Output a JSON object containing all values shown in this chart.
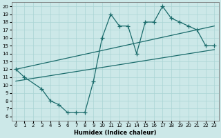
{
  "xlabel": "Humidex (Indice chaleur)",
  "bg_color": "#cce8e8",
  "line_color": "#1a6b6b",
  "xlim": [
    -0.5,
    23.5
  ],
  "ylim": [
    5.5,
    20.5
  ],
  "xticks": [
    0,
    1,
    2,
    3,
    4,
    5,
    6,
    7,
    8,
    9,
    10,
    11,
    12,
    13,
    14,
    15,
    16,
    17,
    18,
    19,
    20,
    21,
    22,
    23
  ],
  "yticks": [
    6,
    7,
    8,
    9,
    10,
    11,
    12,
    13,
    14,
    15,
    16,
    17,
    18,
    19,
    20
  ],
  "upper_curve_x": [
    0,
    1,
    3,
    4,
    5,
    6,
    7,
    8,
    9,
    10,
    11,
    12,
    13,
    14,
    15,
    16,
    17,
    18,
    19,
    20,
    21,
    22,
    23
  ],
  "upper_curve_y": [
    12,
    11,
    9.5,
    8,
    7.5,
    6.5,
    6.5,
    6.5,
    10.5,
    16,
    19,
    17.5,
    17.5,
    14,
    18,
    18,
    20,
    18.5,
    18,
    17.5,
    17,
    15,
    15
  ],
  "line1_x": [
    0,
    23
  ],
  "line1_y": [
    10.5,
    14.5
  ],
  "line2_x": [
    0,
    23
  ],
  "line2_y": [
    12.0,
    17.5
  ],
  "grid_color": "#aad4d4",
  "marker": "+",
  "marker_size": 4,
  "linewidth": 0.9,
  "tick_fontsize": 5,
  "xlabel_fontsize": 6,
  "grid_linewidth": 0.5
}
